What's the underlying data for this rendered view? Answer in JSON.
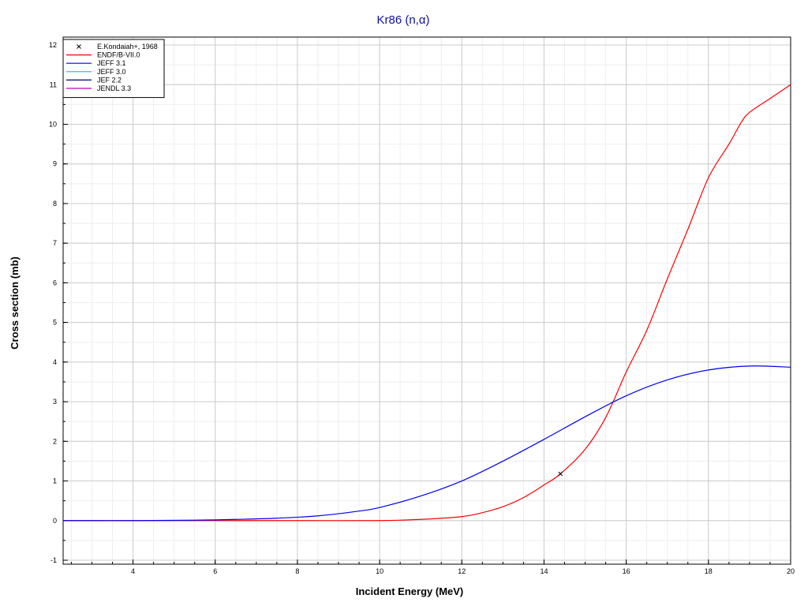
{
  "chart_data": {
    "type": "line",
    "title": "Kr86 (n,α)",
    "xlabel": "Incident Energy (MeV)",
    "ylabel": "Cross section (mb)",
    "xlim": [
      2.3,
      20
    ],
    "ylim": [
      -1.1,
      12.2
    ],
    "x_ticks": [
      4,
      6,
      8,
      10,
      12,
      14,
      16,
      18,
      20
    ],
    "y_ticks": [
      -1,
      0,
      1,
      2,
      3,
      4,
      5,
      6,
      7,
      8,
      9,
      10,
      11,
      12
    ],
    "grid": true,
    "legend_position": "top-left",
    "legend": [
      {
        "name": "E.Kondaiah+, 1968",
        "color": "#000000",
        "marker": "x"
      },
      {
        "name": "ENDF/B-VII.0",
        "color": "#ff0000"
      },
      {
        "name": "JEFF 3.1",
        "color": "#0000ff"
      },
      {
        "name": "JEFF 3.0",
        "color": "#00c8c8"
      },
      {
        "name": "JEF 2.2",
        "color": "#000080"
      },
      {
        "name": "JENDL 3.3",
        "color": "#c000c0"
      }
    ],
    "series": [
      {
        "name": "ENDF/B-VII.0",
        "color": "#ff0000",
        "x": [
          2.3,
          4,
          6,
          8,
          10,
          11,
          12,
          12.5,
          13,
          13.5,
          14,
          14.4,
          15,
          15.5,
          16,
          16.5,
          17,
          17.5,
          18,
          18.5,
          18.8,
          19,
          19.5,
          20
        ],
        "y": [
          0,
          0,
          0,
          0,
          0,
          0.03,
          0.1,
          0.2,
          0.35,
          0.58,
          0.9,
          1.18,
          1.8,
          2.6,
          3.75,
          4.8,
          6.1,
          7.35,
          8.65,
          9.5,
          10.05,
          10.3,
          10.65,
          11.0
        ]
      },
      {
        "name": "JEFF 3.1",
        "color": "#0000ff",
        "x": [
          2.3,
          4,
          5.5,
          6.5,
          7.5,
          8.5,
          9.5,
          10,
          11,
          12,
          13,
          14,
          15,
          16,
          17,
          18,
          19,
          20
        ],
        "y": [
          0,
          0,
          0.01,
          0.03,
          0.06,
          0.12,
          0.24,
          0.33,
          0.62,
          1.0,
          1.5,
          2.05,
          2.62,
          3.15,
          3.55,
          3.8,
          3.9,
          3.87
        ]
      }
    ],
    "points": [
      {
        "series": "E.Kondaiah+, 1968",
        "x": 14.4,
        "y": 1.18
      }
    ]
  }
}
